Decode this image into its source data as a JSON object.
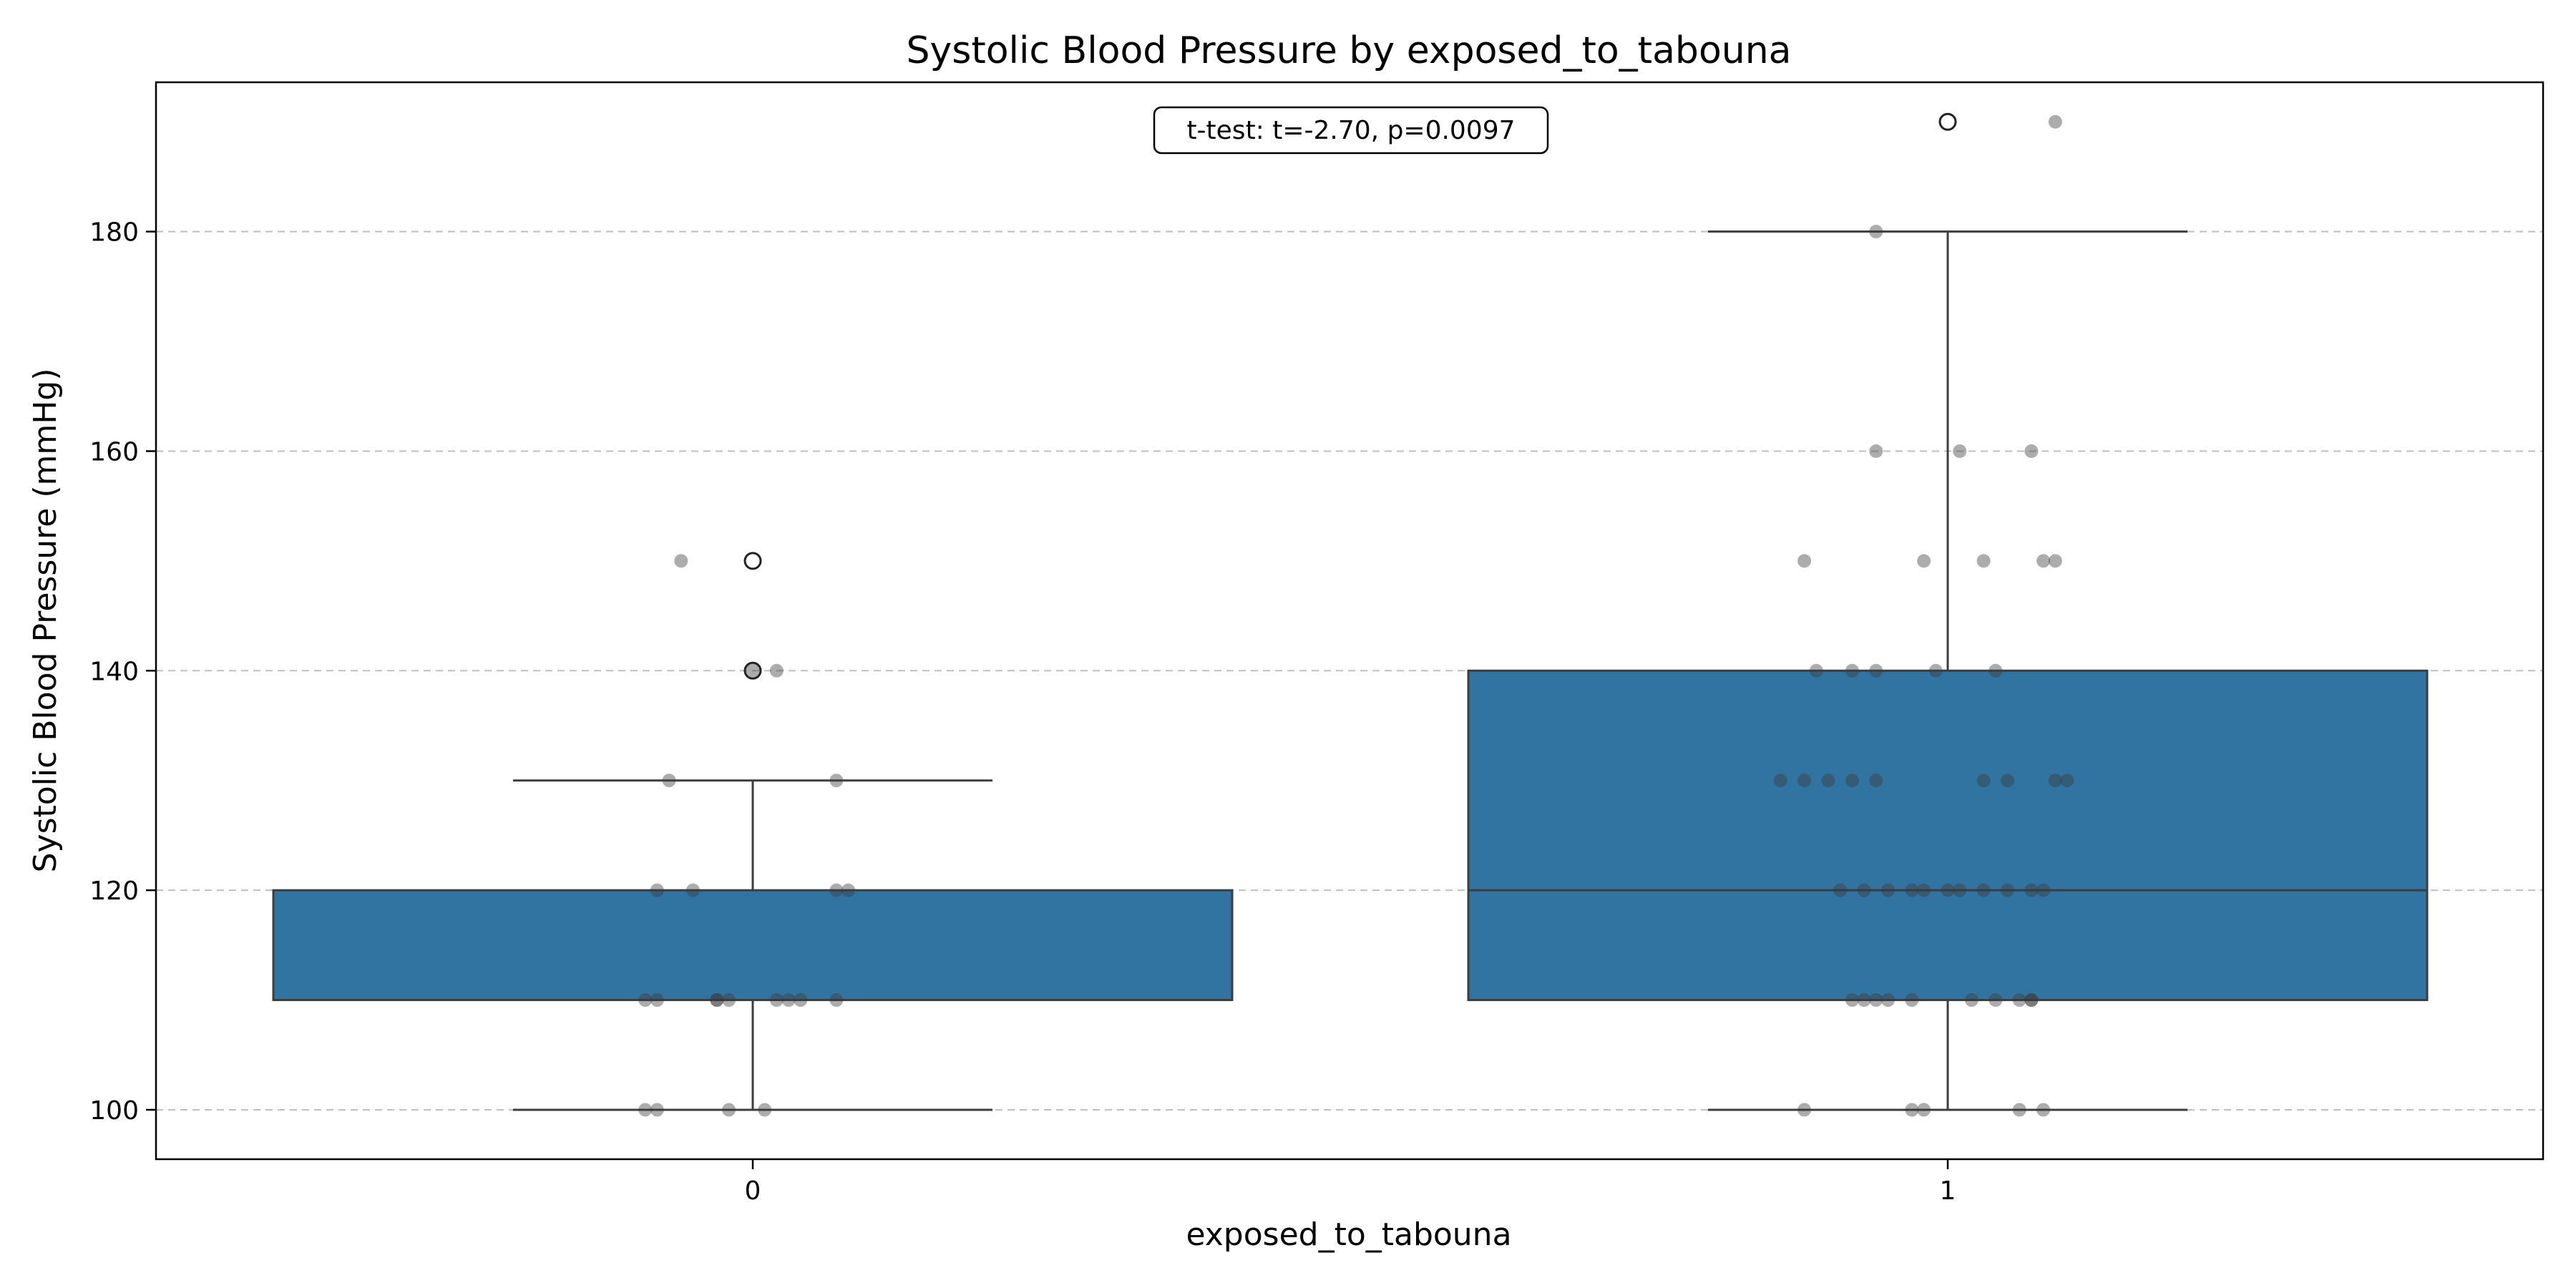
{
  "chart_data": {
    "type": "box",
    "title": "Systolic Blood Pressure by exposed_to_tabouna",
    "xlabel": "exposed_to_tabouna",
    "ylabel": "Systolic Blood Pressure (mmHg)",
    "categories": [
      "0",
      "1"
    ],
    "ylim": [
      95.5,
      193.6
    ],
    "yticks": [
      100,
      120,
      140,
      160,
      180
    ],
    "ytick_labels": [
      "100",
      "120",
      "140",
      "160",
      "180"
    ],
    "grid": "y-dashed",
    "annotation": "t-test: t=-2.70, p=0.0097",
    "box_color": "#3274a1",
    "boxes": [
      {
        "category": "0",
        "whisker_low": 100,
        "q1": 110,
        "median": 110,
        "q3": 120,
        "whisker_high": 130,
        "outliers": [
          140,
          150
        ]
      },
      {
        "category": "1",
        "whisker_low": 100,
        "q1": 110,
        "median": 120,
        "q3": 140,
        "whisker_high": 180,
        "outliers": [
          190
        ]
      }
    ],
    "points": [
      {
        "x": -0.09,
        "y": 100
      },
      {
        "x": -0.08,
        "y": 100
      },
      {
        "x": -0.02,
        "y": 100
      },
      {
        "x": 0.01,
        "y": 100
      },
      {
        "x": -0.09,
        "y": 110
      },
      {
        "x": -0.08,
        "y": 110
      },
      {
        "x": -0.03,
        "y": 110
      },
      {
        "x": -0.03,
        "y": 110
      },
      {
        "x": -0.02,
        "y": 110
      },
      {
        "x": 0.02,
        "y": 110
      },
      {
        "x": 0.03,
        "y": 110
      },
      {
        "x": 0.04,
        "y": 110
      },
      {
        "x": 0.07,
        "y": 110
      },
      {
        "x": -0.08,
        "y": 120
      },
      {
        "x": -0.05,
        "y": 120
      },
      {
        "x": 0.07,
        "y": 120
      },
      {
        "x": 0.08,
        "y": 120
      },
      {
        "x": -0.07,
        "y": 130
      },
      {
        "x": 0.07,
        "y": 130
      },
      {
        "x": 0.0,
        "y": 140
      },
      {
        "x": 0.02,
        "y": 140
      },
      {
        "x": -0.06,
        "y": 150
      },
      {
        "x": 0.88,
        "y": 100
      },
      {
        "x": 0.97,
        "y": 100
      },
      {
        "x": 0.98,
        "y": 100
      },
      {
        "x": 1.06,
        "y": 100
      },
      {
        "x": 1.08,
        "y": 100
      },
      {
        "x": 0.92,
        "y": 110
      },
      {
        "x": 0.93,
        "y": 110
      },
      {
        "x": 0.94,
        "y": 110
      },
      {
        "x": 0.95,
        "y": 110
      },
      {
        "x": 0.97,
        "y": 110
      },
      {
        "x": 1.02,
        "y": 110
      },
      {
        "x": 1.04,
        "y": 110
      },
      {
        "x": 1.06,
        "y": 110
      },
      {
        "x": 1.07,
        "y": 110
      },
      {
        "x": 1.07,
        "y": 110
      },
      {
        "x": 0.91,
        "y": 120
      },
      {
        "x": 0.93,
        "y": 120
      },
      {
        "x": 0.95,
        "y": 120
      },
      {
        "x": 0.97,
        "y": 120
      },
      {
        "x": 0.98,
        "y": 120
      },
      {
        "x": 1.0,
        "y": 120
      },
      {
        "x": 1.01,
        "y": 120
      },
      {
        "x": 1.03,
        "y": 120
      },
      {
        "x": 1.05,
        "y": 120
      },
      {
        "x": 1.07,
        "y": 120
      },
      {
        "x": 1.08,
        "y": 120
      },
      {
        "x": 0.86,
        "y": 130
      },
      {
        "x": 0.88,
        "y": 130
      },
      {
        "x": 0.9,
        "y": 130
      },
      {
        "x": 0.92,
        "y": 130
      },
      {
        "x": 0.94,
        "y": 130
      },
      {
        "x": 1.03,
        "y": 130
      },
      {
        "x": 1.05,
        "y": 130
      },
      {
        "x": 1.09,
        "y": 130
      },
      {
        "x": 1.1,
        "y": 130
      },
      {
        "x": 0.89,
        "y": 140
      },
      {
        "x": 0.92,
        "y": 140
      },
      {
        "x": 0.94,
        "y": 140
      },
      {
        "x": 0.99,
        "y": 140
      },
      {
        "x": 1.04,
        "y": 140
      },
      {
        "x": 0.88,
        "y": 150
      },
      {
        "x": 0.98,
        "y": 150
      },
      {
        "x": 1.03,
        "y": 150
      },
      {
        "x": 1.08,
        "y": 150
      },
      {
        "x": 1.09,
        "y": 150
      },
      {
        "x": 0.94,
        "y": 160
      },
      {
        "x": 1.01,
        "y": 160
      },
      {
        "x": 1.07,
        "y": 160
      },
      {
        "x": 0.94,
        "y": 180
      },
      {
        "x": 1.09,
        "y": 190
      }
    ]
  }
}
